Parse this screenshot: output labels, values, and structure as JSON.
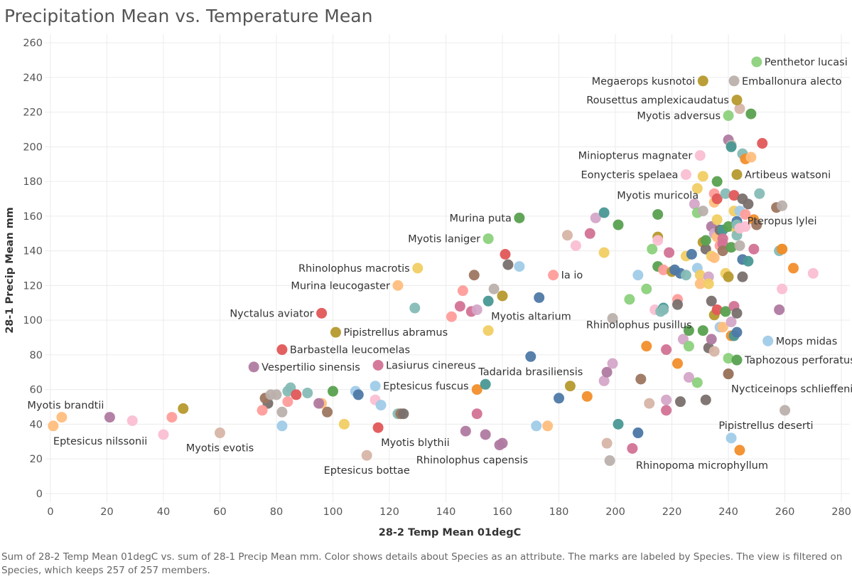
{
  "caption": "Sum of 28-2 Temp Mean 01degC vs. sum of 28-1 Precip Mean mm.  Color shows details about Species as an attribute.  The marks are labeled by Species. The view is filtered on Species, which keeps 257 of 257 members.",
  "chart_data": {
    "type": "scatter",
    "title": "Precipitation Mean vs. Temperature Mean",
    "xlabel": "28-2 Temp Mean 01degC",
    "ylabel": "28-1 Precip Mean mm",
    "xlim": [
      -2,
      283
    ],
    "ylim": [
      -5,
      265
    ],
    "xticks": [
      0,
      20,
      40,
      60,
      80,
      100,
      120,
      140,
      160,
      180,
      200,
      220,
      240,
      260,
      280
    ],
    "yticks": [
      0,
      20,
      40,
      60,
      80,
      100,
      120,
      140,
      160,
      180,
      200,
      220,
      240,
      260
    ],
    "grid": true,
    "legend": "none",
    "labeled_points": [
      {
        "label": "Penthetor lucasi",
        "x": 250,
        "y": 249,
        "color": "#8cd17d",
        "pos": "right"
      },
      {
        "label": "Megaerops kusnotoi",
        "x": 231,
        "y": 238,
        "color": "#b6992d",
        "pos": "left"
      },
      {
        "label": "Emballonura alecto",
        "x": 242,
        "y": 238,
        "color": "#bab0ac",
        "pos": "right"
      },
      {
        "label": "Rousettus amplexicaudatus",
        "x": 243,
        "y": 227,
        "color": "#b6992d",
        "pos": "left"
      },
      {
        "label": "Myotis adversus",
        "x": 240,
        "y": 218,
        "color": "#8cd17d",
        "pos": "left"
      },
      {
        "label": "Miniopterus magnater",
        "x": 230,
        "y": 195,
        "color": "#fabfd2",
        "pos": "left"
      },
      {
        "label": "Eonycteris spelaea",
        "x": 225,
        "y": 184,
        "color": "#fabfd2",
        "pos": "left"
      },
      {
        "label": "Artibeus watsoni",
        "x": 243,
        "y": 184,
        "color": "#b6992d",
        "pos": "right"
      },
      {
        "label": "Myotis muricola",
        "x": 215,
        "y": 161,
        "color": "#59a14f",
        "pos": "above"
      },
      {
        "label": "Murina puta",
        "x": 166,
        "y": 159,
        "color": "#59a14f",
        "pos": "left"
      },
      {
        "label": "Pteropus lylei",
        "x": 259,
        "y": 166,
        "color": "#bab0ac",
        "pos": "below"
      },
      {
        "label": "Myotis laniger",
        "x": 155,
        "y": 147,
        "color": "#8cd17d",
        "pos": "left"
      },
      {
        "label": "Rhinolophus macrotis",
        "x": 130,
        "y": 130,
        "color": "#f1ce63",
        "pos": "left"
      },
      {
        "label": "Ia io",
        "x": 178,
        "y": 126,
        "color": "#ff9d9a",
        "pos": "right"
      },
      {
        "label": "Murina leucogaster",
        "x": 123,
        "y": 120,
        "color": "#ffbe7d",
        "pos": "left"
      },
      {
        "label": "Myotis altarium",
        "x": 155,
        "y": 111,
        "color": "#499894",
        "pos": "right-below"
      },
      {
        "label": "Nyctalus aviator",
        "x": 96,
        "y": 104,
        "color": "#e15759",
        "pos": "left"
      },
      {
        "label": "Rhinolophus pusillus",
        "x": 217,
        "y": 106,
        "color": "#86bcb6",
        "pos": "left-below"
      },
      {
        "label": "Pipistrellus abramus",
        "x": 101,
        "y": 93,
        "color": "#b6992d",
        "pos": "right"
      },
      {
        "label": "Mops midas",
        "x": 254,
        "y": 88,
        "color": "#a0cbe8",
        "pos": "right"
      },
      {
        "label": "Barbastella leucomelas",
        "x": 82,
        "y": 83,
        "color": "#e15759",
        "pos": "right"
      },
      {
        "label": "Taphozous perforatus",
        "x": 243,
        "y": 77,
        "color": "#59a14f",
        "pos": "right"
      },
      {
        "label": "Vespertilio sinensis",
        "x": 72,
        "y": 73,
        "color": "#b07aa1",
        "pos": "right"
      },
      {
        "label": "Lasiurus cinereus",
        "x": 116,
        "y": 74,
        "color": "#d37295",
        "pos": "right"
      },
      {
        "label": "Tadarida brasiliensis",
        "x": 170,
        "y": 79,
        "color": "#4e79a7",
        "pos": "below"
      },
      {
        "label": "Eptesicus fuscus",
        "x": 115,
        "y": 62,
        "color": "#a0cbe8",
        "pos": "right"
      },
      {
        "label": "Nycticeinops schlieffeni",
        "x": 240,
        "y": 69,
        "color": "#9d7660",
        "pos": "right-below"
      },
      {
        "label": "Myotis brandtii",
        "x": 21,
        "y": 44,
        "color": "#b07aa1",
        "pos": "above-left"
      },
      {
        "label": "Eptesicus nilssonii",
        "x": 1,
        "y": 39,
        "color": "#ffbe7d",
        "pos": "below-right"
      },
      {
        "label": "Myotis evotis",
        "x": 60,
        "y": 35,
        "color": "#d7b5a6",
        "pos": "below"
      },
      {
        "label": "Pipistrellus deserti",
        "x": 260,
        "y": 48,
        "color": "#bab0ac",
        "pos": "left-below"
      },
      {
        "label": "Myotis blythii",
        "x": 116,
        "y": 38,
        "color": "#e15759",
        "pos": "right-below"
      },
      {
        "label": "Rhinolophus capensis",
        "x": 159,
        "y": 28,
        "color": "#b07aa1",
        "pos": "left-below"
      },
      {
        "label": "Eptesicus bottae",
        "x": 112,
        "y": 22,
        "color": "#d7b5a6",
        "pos": "below"
      },
      {
        "label": "Rhinopoma microphyllum",
        "x": 244,
        "y": 25,
        "color": "#f28e2b",
        "pos": "left-below"
      }
    ],
    "points": [
      [
        4,
        44,
        "#ffbe7d"
      ],
      [
        40,
        34,
        "#fabfd2"
      ],
      [
        29,
        42,
        "#fabfd2"
      ],
      [
        43,
        44,
        "#ff9d9a"
      ],
      [
        47,
        49,
        "#b6992d"
      ],
      [
        77,
        52,
        "#79706e"
      ],
      [
        76,
        55,
        "#9d7660"
      ],
      [
        78,
        57,
        "#bab0ac"
      ],
      [
        80,
        57,
        "#bab0ac"
      ],
      [
        75,
        48,
        "#ff9d9a"
      ],
      [
        84,
        59,
        "#86bcb6"
      ],
      [
        85,
        61,
        "#86bcb6"
      ],
      [
        87,
        57,
        "#e15759"
      ],
      [
        82,
        39,
        "#a0cbe8"
      ],
      [
        82,
        47,
        "#bab0ac"
      ],
      [
        84,
        53,
        "#ff9d9a"
      ],
      [
        91,
        58,
        "#86bcb6"
      ],
      [
        96,
        52,
        "#ffbe7d"
      ],
      [
        95,
        52,
        "#b07aa1"
      ],
      [
        98,
        47,
        "#9d7660"
      ],
      [
        100,
        59,
        "#59a14f"
      ],
      [
        104,
        40,
        "#f1ce63"
      ],
      [
        108,
        59,
        "#a0cbe8"
      ],
      [
        109,
        57,
        "#4e79a7"
      ],
      [
        115,
        54,
        "#fabfd2"
      ],
      [
        117,
        51,
        "#a0cbe8"
      ],
      [
        123,
        46,
        "#86bcb6"
      ],
      [
        124,
        46,
        "#9d7660"
      ],
      [
        125,
        46,
        "#79706e"
      ],
      [
        129,
        107,
        "#86bcb6"
      ],
      [
        142,
        102,
        "#ff9d9a"
      ],
      [
        145,
        108,
        "#d37295"
      ],
      [
        146,
        117,
        "#ff9d9a"
      ],
      [
        147,
        36,
        "#b07aa1"
      ],
      [
        149,
        105,
        "#d37295"
      ],
      [
        150,
        126,
        "#9d7660"
      ],
      [
        151,
        106,
        "#d4a6c8"
      ],
      [
        151,
        46,
        "#d37295"
      ],
      [
        151,
        60,
        "#f28e2b"
      ],
      [
        154,
        63,
        "#499894"
      ],
      [
        154,
        34,
        "#b07aa1"
      ],
      [
        155,
        94,
        "#f1ce63"
      ],
      [
        157,
        118,
        "#bab0ac"
      ],
      [
        160,
        114,
        "#b6992d"
      ],
      [
        160,
        29,
        "#b07aa1"
      ],
      [
        161,
        138,
        "#e15759"
      ],
      [
        162,
        132,
        "#79706e"
      ],
      [
        166,
        131,
        "#a0cbe8"
      ],
      [
        172,
        39,
        "#a0cbe8"
      ],
      [
        173,
        113,
        "#4e79a7"
      ],
      [
        176,
        39,
        "#ffbe7d"
      ],
      [
        180,
        55,
        "#4e79a7"
      ],
      [
        183,
        149,
        "#d7b5a6"
      ],
      [
        184,
        62,
        "#b6992d"
      ],
      [
        186,
        143,
        "#fabfd2"
      ],
      [
        190,
        56,
        "#f28e2b"
      ],
      [
        191,
        150,
        "#d37295"
      ],
      [
        193,
        159,
        "#d4a6c8"
      ],
      [
        196,
        162,
        "#499894"
      ],
      [
        196,
        139,
        "#f1ce63"
      ],
      [
        196,
        65,
        "#d4a6c8"
      ],
      [
        197,
        70,
        "#b07aa1"
      ],
      [
        197,
        29,
        "#d7b5a6"
      ],
      [
        198,
        19,
        "#bab0ac"
      ],
      [
        199,
        75,
        "#d4a6c8"
      ],
      [
        199,
        101,
        "#bab0ac"
      ],
      [
        201,
        155,
        "#59a14f"
      ],
      [
        201,
        40,
        "#499894"
      ],
      [
        205,
        112,
        "#8cd17d"
      ],
      [
        206,
        26,
        "#d37295"
      ],
      [
        208,
        35,
        "#a0cbe8"
      ],
      [
        208,
        35,
        "#4e79a7"
      ],
      [
        208,
        126,
        "#a0cbe8"
      ],
      [
        209,
        66,
        "#9d7660"
      ],
      [
        211,
        118,
        "#8cd17d"
      ],
      [
        211,
        85,
        "#f28e2b"
      ],
      [
        212,
        52,
        "#d7b5a6"
      ],
      [
        213,
        141,
        "#8cd17d"
      ],
      [
        214,
        106,
        "#fabfd2"
      ],
      [
        215,
        148,
        "#b6992d"
      ],
      [
        215,
        146,
        "#fabfd2"
      ],
      [
        215,
        131,
        "#59a14f"
      ],
      [
        216,
        105,
        "#86bcb6"
      ],
      [
        217,
        129,
        "#ff9d9a"
      ],
      [
        217,
        107,
        "#499894"
      ],
      [
        218,
        83,
        "#d37295"
      ],
      [
        218,
        48,
        "#d37295"
      ],
      [
        218,
        54,
        "#d4a6c8"
      ],
      [
        219,
        139,
        "#d37295"
      ],
      [
        220,
        128,
        "#b6992d"
      ],
      [
        221,
        129,
        "#4e79a7"
      ],
      [
        222,
        75,
        "#f28e2b"
      ],
      [
        222,
        112,
        "#ff9d9a"
      ],
      [
        222,
        109,
        "#79706e"
      ],
      [
        223,
        127,
        "#4e79a7"
      ],
      [
        223,
        53,
        "#79706e"
      ],
      [
        224,
        89,
        "#d4a6c8"
      ],
      [
        225,
        126,
        "#86bcb6"
      ],
      [
        225,
        137,
        "#f1ce63"
      ],
      [
        226,
        94,
        "#59a14f"
      ],
      [
        226,
        85,
        "#8cd17d"
      ],
      [
        226,
        67,
        "#d4a6c8"
      ],
      [
        227,
        138,
        "#4e79a7"
      ],
      [
        228,
        167,
        "#d4a6c8"
      ],
      [
        229,
        176,
        "#f1ce63"
      ],
      [
        229,
        162,
        "#8cd17d"
      ],
      [
        229,
        130,
        "#a0cbe8"
      ],
      [
        229,
        64,
        "#8cd17d"
      ],
      [
        230,
        126,
        "#f1ce63"
      ],
      [
        230,
        121,
        "#ffbe7d"
      ],
      [
        231,
        145,
        "#b6992d"
      ],
      [
        231,
        183,
        "#f1ce63"
      ],
      [
        231,
        163,
        "#bab0ac"
      ],
      [
        231,
        94,
        "#59a14f"
      ],
      [
        232,
        141,
        "#79706e"
      ],
      [
        232,
        146,
        "#59a14f"
      ],
      [
        232,
        54,
        "#79706e"
      ],
      [
        233,
        125,
        "#d4a6c8"
      ],
      [
        233,
        84,
        "#79706e"
      ],
      [
        233,
        121,
        "#f1ce63"
      ],
      [
        234,
        137,
        "#f1ce63"
      ],
      [
        234,
        154,
        "#b07aa1"
      ],
      [
        234,
        111,
        "#79706e"
      ],
      [
        234,
        89,
        "#b07aa1"
      ],
      [
        235,
        173,
        "#ff9d9a"
      ],
      [
        235,
        168,
        "#ffbe7d"
      ],
      [
        235,
        150,
        "#d4a6c8"
      ],
      [
        235,
        136,
        "#ffbe7d"
      ],
      [
        235,
        103,
        "#b6992d"
      ],
      [
        235,
        82,
        "#d7b5a6"
      ],
      [
        236,
        170,
        "#e15759"
      ],
      [
        236,
        180,
        "#59a14f"
      ],
      [
        236,
        158,
        "#f1ce63"
      ],
      [
        236,
        148,
        "#ffbe7d"
      ],
      [
        236,
        106,
        "#e15759"
      ],
      [
        237,
        96,
        "#a0cbe8"
      ],
      [
        237,
        152,
        "#79706e"
      ],
      [
        237,
        143,
        "#ff9d9a"
      ],
      [
        238,
        144,
        "#d37295"
      ],
      [
        238,
        140,
        "#9d7660"
      ],
      [
        238,
        152,
        "#499894"
      ],
      [
        238,
        147,
        "#d37295"
      ],
      [
        238,
        96,
        "#ffbe7d"
      ],
      [
        239,
        173,
        "#86bcb6"
      ],
      [
        239,
        127,
        "#f1ce63"
      ],
      [
        239,
        105,
        "#59a14f"
      ],
      [
        240,
        204,
        "#b07aa1"
      ],
      [
        240,
        154,
        "#59a14f"
      ],
      [
        240,
        78,
        "#8cd17d"
      ],
      [
        240,
        125,
        "#b6992d"
      ],
      [
        240,
        69,
        "#9d7660"
      ],
      [
        241,
        201,
        "#bab0ac"
      ],
      [
        241,
        200,
        "#499894"
      ],
      [
        241,
        142,
        "#59a14f"
      ],
      [
        241,
        99,
        "#d4a6c8"
      ],
      [
        241,
        32,
        "#a0cbe8"
      ],
      [
        241,
        91,
        "#f28e2b"
      ],
      [
        242,
        172,
        "#e15759"
      ],
      [
        242,
        163,
        "#f1ce63"
      ],
      [
        242,
        108,
        "#d37295"
      ],
      [
        242,
        91,
        "#499894"
      ],
      [
        243,
        157,
        "#4e79a7"
      ],
      [
        243,
        152,
        "#f1ce63"
      ],
      [
        243,
        149,
        "#86bcb6"
      ],
      [
        243,
        155,
        "#86bcb6"
      ],
      [
        243,
        104,
        "#79706e"
      ],
      [
        243,
        93,
        "#4e79a7"
      ],
      [
        244,
        222,
        "#d7b5a6"
      ],
      [
        244,
        163,
        "#a0cbe8"
      ],
      [
        244,
        153,
        "#fabfd2"
      ],
      [
        244,
        143,
        "#bab0ac"
      ],
      [
        245,
        196,
        "#86bcb6"
      ],
      [
        245,
        170,
        "#79706e"
      ],
      [
        245,
        125,
        "#79706e"
      ],
      [
        245,
        135,
        "#4e79a7"
      ],
      [
        246,
        193,
        "#f28e2b"
      ],
      [
        246,
        161,
        "#ff9d9a"
      ],
      [
        246,
        154,
        "#fabfd2"
      ],
      [
        247,
        167,
        "#79706e"
      ],
      [
        247,
        134,
        "#499894"
      ],
      [
        248,
        194,
        "#ffbe7d"
      ],
      [
        248,
        219,
        "#59a14f"
      ],
      [
        249,
        158,
        "#f28e2b"
      ],
      [
        249,
        141,
        "#d37295"
      ],
      [
        250,
        155,
        "#9d7660"
      ],
      [
        251,
        173,
        "#86bcb6"
      ],
      [
        252,
        202,
        "#e15759"
      ],
      [
        257,
        165,
        "#9d7660"
      ],
      [
        258,
        140,
        "#86bcb6"
      ],
      [
        259,
        141,
        "#b6992d"
      ],
      [
        259,
        141,
        "#f28e2b"
      ],
      [
        259,
        118,
        "#fabfd2"
      ],
      [
        258,
        106,
        "#b07aa1"
      ],
      [
        263,
        130,
        "#f28e2b"
      ],
      [
        270,
        127,
        "#fabfd2"
      ]
    ]
  }
}
